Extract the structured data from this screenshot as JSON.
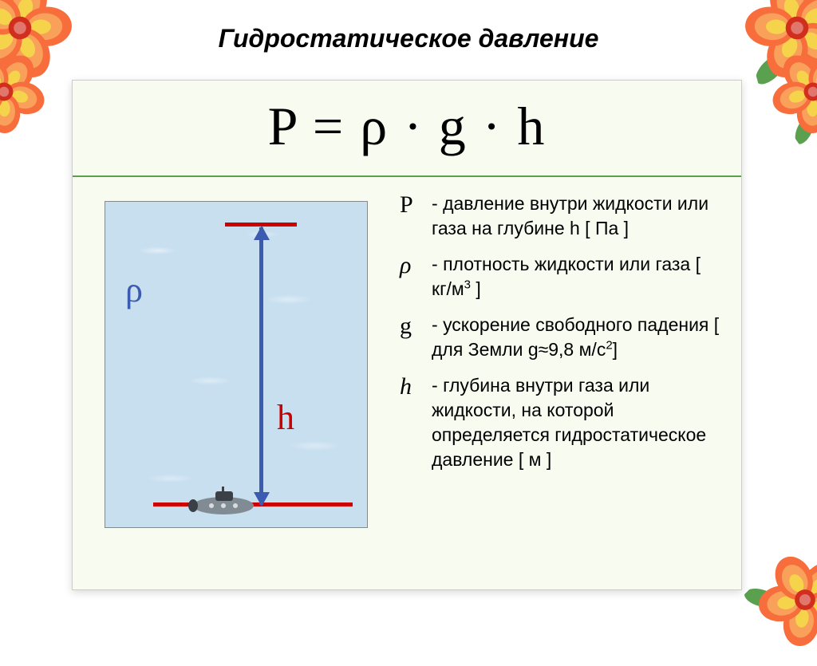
{
  "title": "Гидростатическое давление",
  "formula": "P = ρ · g · h",
  "diagram": {
    "rho_symbol": "ρ",
    "h_symbol": "h",
    "water_bg": "#c8dff0",
    "accent_red": "#cc0000",
    "accent_blue": "#3b5bb0",
    "sub_body": "#808b94",
    "sub_dark": "#3a4046"
  },
  "legend": [
    {
      "symbol": "P",
      "dash": " - ",
      "text_html": "давление внутри жидкости или газа на глубине h [ Па ]"
    },
    {
      "symbol": "ρ",
      "dash": " - ",
      "text_html": "плотность жидкости или газа [ кг/м<span class=\"sup\">3</span> ]"
    },
    {
      "symbol": "g",
      "dash": " - ",
      "text_html": "ускорение свободного падения [ для Земли g≈9,8 м/с<span class=\"sup\">2</span>]"
    },
    {
      "symbol": "h",
      "dash": " - ",
      "text_html": "глубина внутри газа или жидкости, на которой определяется гидростатическое давление [ м ]"
    }
  ],
  "flower": {
    "petal_outer": "#f76d3c",
    "petal_mid": "#f9a05a",
    "petal_inner": "#f5d34a",
    "center": "#d12e1e",
    "leaf": "#5aa04e"
  }
}
